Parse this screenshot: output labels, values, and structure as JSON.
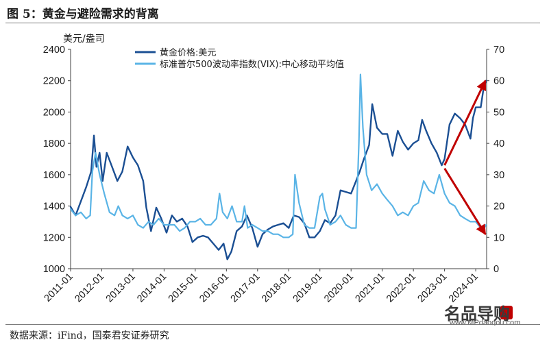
{
  "title": "图 5：黄金与避险需求的背离",
  "source": "数据来源：iFind，国泰君安证券研究",
  "watermark": {
    "brand": "名品导购",
    "url": "www.MPdaogou.com"
  },
  "colors": {
    "gold": "#1b4f93",
    "vix": "#5ab4e6",
    "arrow": "#c00000"
  },
  "chart_data": {
    "type": "line",
    "left_axis_unit": "美元/盎司",
    "x_ticks": [
      "2011-01",
      "2012-01",
      "2013-01",
      "2014-01",
      "2015-01",
      "2016-01",
      "2017-01",
      "2018-01",
      "2019-01",
      "2020-01",
      "2021-01",
      "2022-01",
      "2023-01",
      "2024-01"
    ],
    "y_left": {
      "min": 1000,
      "max": 2400,
      "ticks": [
        1000,
        1200,
        1400,
        1600,
        1800,
        2000,
        2200,
        2400
      ]
    },
    "y_right": {
      "min": 0,
      "max": 70,
      "ticks": [
        0,
        10,
        20,
        30,
        40,
        50,
        60,
        70
      ]
    },
    "legend": [
      "黄金价格:美元",
      "标准普尔500波动率指数(VIX):中心移动平均值"
    ],
    "series": [
      {
        "name": "黄金价格:美元",
        "axis": "left",
        "color": "#1b4f93",
        "x": [
          2010.92,
          2011.08,
          2011.25,
          2011.42,
          2011.58,
          2011.67,
          2011.75,
          2011.85,
          2011.95,
          2012.08,
          2012.25,
          2012.42,
          2012.58,
          2012.75,
          2012.92,
          2013.08,
          2013.25,
          2013.35,
          2013.5,
          2013.67,
          2013.83,
          2014.0,
          2014.17,
          2014.33,
          2014.5,
          2014.67,
          2014.83,
          2015.0,
          2015.17,
          2015.33,
          2015.5,
          2015.67,
          2015.83,
          2015.95,
          2016.08,
          2016.25,
          2016.42,
          2016.58,
          2016.75,
          2016.92,
          2017.08,
          2017.25,
          2017.42,
          2017.58,
          2017.75,
          2017.92,
          2018.08,
          2018.25,
          2018.42,
          2018.58,
          2018.75,
          2018.92,
          2019.08,
          2019.25,
          2019.42,
          2019.58,
          2019.75,
          2019.92,
          2020.08,
          2020.2,
          2020.33,
          2020.5,
          2020.6,
          2020.75,
          2020.92,
          2021.08,
          2021.25,
          2021.42,
          2021.58,
          2021.75,
          2021.92,
          2022.08,
          2022.2,
          2022.33,
          2022.5,
          2022.67,
          2022.83,
          2022.92,
          2023.08,
          2023.25,
          2023.42,
          2023.58,
          2023.75,
          2023.83,
          2023.92,
          2024.08,
          2024.17,
          2024.25
        ],
        "y": [
          1395,
          1340,
          1430,
          1520,
          1620,
          1850,
          1650,
          1740,
          1560,
          1740,
          1650,
          1560,
          1620,
          1780,
          1710,
          1660,
          1560,
          1390,
          1240,
          1390,
          1320,
          1230,
          1340,
          1300,
          1320,
          1270,
          1170,
          1200,
          1210,
          1200,
          1160,
          1120,
          1160,
          1060,
          1110,
          1240,
          1270,
          1340,
          1260,
          1140,
          1220,
          1250,
          1270,
          1280,
          1290,
          1260,
          1340,
          1330,
          1290,
          1200,
          1200,
          1240,
          1310,
          1290,
          1340,
          1500,
          1490,
          1480,
          1560,
          1620,
          1700,
          1790,
          2050,
          1900,
          1860,
          1860,
          1720,
          1880,
          1810,
          1760,
          1800,
          1820,
          1950,
          1880,
          1800,
          1740,
          1660,
          1700,
          1920,
          1990,
          1960,
          1920,
          1830,
          1960,
          2030,
          2030,
          2150,
          2200
        ]
      },
      {
        "name": "标准普尔500波动率指数(VIX):中心移动平均值",
        "axis": "right",
        "color": "#5ab4e6",
        "x": [
          2010.92,
          2011.08,
          2011.25,
          2011.42,
          2011.55,
          2011.62,
          2011.72,
          2011.85,
          2012.0,
          2012.17,
          2012.33,
          2012.45,
          2012.58,
          2012.75,
          2012.92,
          2013.08,
          2013.25,
          2013.42,
          2013.58,
          2013.75,
          2013.92,
          2014.08,
          2014.25,
          2014.42,
          2014.58,
          2014.75,
          2014.92,
          2015.08,
          2015.25,
          2015.42,
          2015.6,
          2015.7,
          2015.8,
          2015.95,
          2016.1,
          2016.25,
          2016.42,
          2016.5,
          2016.6,
          2016.75,
          2016.92,
          2017.08,
          2017.25,
          2017.42,
          2017.58,
          2017.75,
          2017.92,
          2018.05,
          2018.12,
          2018.25,
          2018.42,
          2018.58,
          2018.75,
          2018.92,
          2019.0,
          2019.08,
          2019.25,
          2019.42,
          2019.58,
          2019.75,
          2019.92,
          2020.08,
          2020.17,
          2020.22,
          2020.3,
          2020.42,
          2020.58,
          2020.75,
          2020.92,
          2021.08,
          2021.25,
          2021.42,
          2021.58,
          2021.75,
          2021.92,
          2022.08,
          2022.25,
          2022.42,
          2022.58,
          2022.75,
          2022.92,
          2023.08,
          2023.25,
          2023.42,
          2023.58,
          2023.75,
          2023.92,
          2024.08,
          2024.2,
          2024.25
        ],
        "y": [
          19,
          17,
          18,
          16,
          17,
          31,
          37,
          30,
          24,
          18,
          17,
          20,
          17,
          16,
          17,
          14,
          13,
          15,
          14,
          16,
          14,
          14,
          14,
          12,
          13,
          15,
          15,
          16,
          14,
          14,
          16,
          24,
          18,
          16,
          20,
          15,
          15,
          20,
          13,
          14,
          13,
          12,
          12,
          11,
          11,
          10,
          10,
          11,
          30,
          21,
          14,
          13,
          13,
          23,
          24,
          19,
          14,
          15,
          17,
          14,
          13,
          13,
          40,
          62,
          45,
          30,
          25,
          27,
          24,
          22,
          20,
          17,
          18,
          17,
          20,
          21,
          28,
          25,
          24,
          30,
          24,
          21,
          20,
          17,
          16,
          15,
          15,
          13,
          13,
          14
        ]
      }
    ],
    "annotations": [
      {
        "shape": "arrow",
        "from": [
          2022.92,
          1660
        ],
        "to": [
          2024.23,
          2200
        ],
        "color": "#c00000"
      },
      {
        "shape": "arrow",
        "from": [
          2022.92,
          1640
        ],
        "to": [
          2024.23,
          1220
        ],
        "color": "#c00000"
      }
    ]
  }
}
